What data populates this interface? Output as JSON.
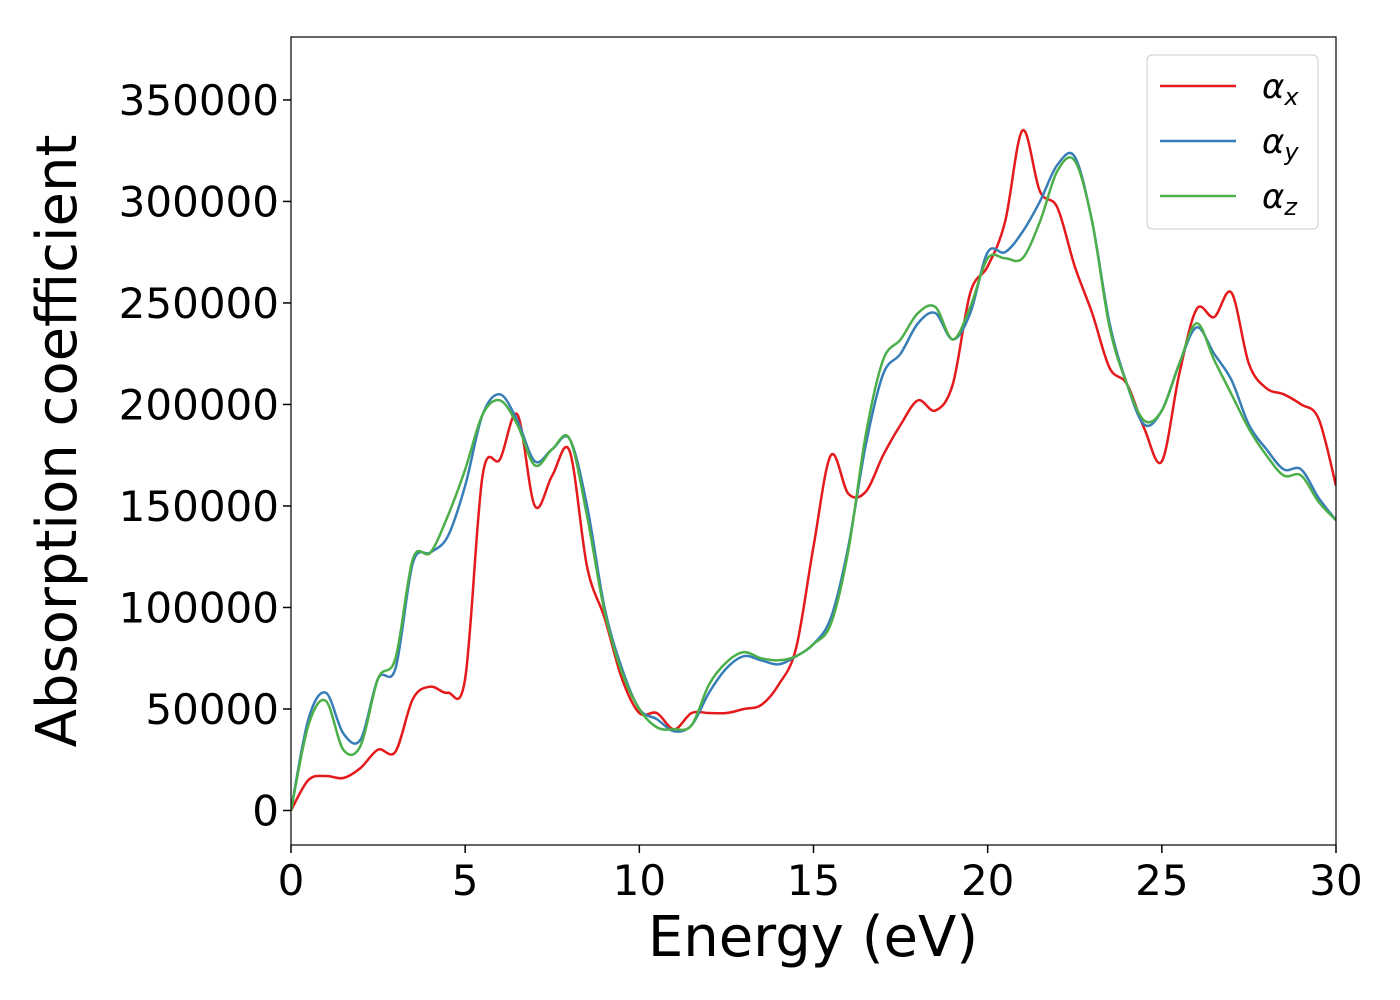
{
  "chart_data": {
    "type": "line",
    "xlabel": "Energy (eV)",
    "ylabel": "Absorption coefficient",
    "x": [
      0,
      0.5,
      1,
      1.5,
      2,
      2.5,
      3,
      3.5,
      4,
      4.5,
      5,
      5.5,
      6,
      6.5,
      7,
      7.5,
      8,
      8.5,
      9,
      9.5,
      10,
      10.5,
      11,
      11.5,
      12,
      12.5,
      13,
      13.5,
      14,
      14.5,
      15,
      15.5,
      16,
      16.5,
      17,
      17.5,
      18,
      18.5,
      19,
      19.5,
      20,
      20.5,
      21,
      21.5,
      22,
      22.5,
      23,
      23.5,
      24,
      24.5,
      25,
      25.5,
      26,
      26.5,
      27,
      27.5,
      28,
      28.5,
      29,
      29.5,
      30
    ],
    "series": [
      {
        "name": "α_x",
        "color": "#e41a1c",
        "values": [
          0,
          15000,
          17000,
          16000,
          21000,
          30000,
          29000,
          55000,
          61000,
          58000,
          65000,
          165000,
          173000,
          195000,
          150000,
          165000,
          177000,
          120000,
          95000,
          65000,
          48000,
          48000,
          40000,
          48000,
          48000,
          48000,
          50000,
          52000,
          62000,
          80000,
          130000,
          175000,
          156000,
          157000,
          175000,
          190000,
          202000,
          197000,
          210000,
          255000,
          268000,
          290000,
          335000,
          305000,
          297000,
          268000,
          245000,
          218000,
          210000,
          188000,
          172000,
          215000,
          247000,
          243000,
          255000,
          220000,
          208000,
          205000,
          200000,
          193000,
          160000
        ]
      },
      {
        "name": "α_y",
        "color": "#377eb8",
        "values": [
          0,
          45000,
          58000,
          38000,
          35000,
          65000,
          70000,
          122000,
          127000,
          135000,
          160000,
          195000,
          205000,
          192000,
          172000,
          178000,
          183000,
          150000,
          100000,
          70000,
          50000,
          45000,
          39000,
          42000,
          58000,
          70000,
          76000,
          74000,
          72000,
          76000,
          82000,
          95000,
          130000,
          180000,
          215000,
          225000,
          240000,
          245000,
          232000,
          245000,
          275000,
          275000,
          285000,
          300000,
          318000,
          322000,
          290000,
          240000,
          210000,
          190000,
          197000,
          220000,
          238000,
          225000,
          212000,
          190000,
          178000,
          168000,
          168000,
          154000,
          143000
        ]
      },
      {
        "name": "α_z",
        "color": "#4daf4a",
        "values": [
          0,
          42000,
          54000,
          30000,
          32000,
          65000,
          75000,
          124000,
          127000,
          145000,
          168000,
          195000,
          202000,
          190000,
          170000,
          178000,
          183000,
          145000,
          98000,
          68000,
          50000,
          41000,
          40000,
          42000,
          62000,
          73000,
          78000,
          75000,
          74000,
          76000,
          82000,
          92000,
          128000,
          185000,
          222000,
          232000,
          245000,
          248000,
          232000,
          248000,
          272000,
          272000,
          272000,
          290000,
          315000,
          320000,
          290000,
          238000,
          210000,
          192000,
          197000,
          220000,
          240000,
          222000,
          205000,
          188000,
          175000,
          165000,
          165000,
          152000,
          143000
        ]
      }
    ],
    "xlim": [
      0,
      30
    ],
    "xticks": [
      0,
      5,
      10,
      15,
      20,
      25,
      30
    ],
    "ylim": [
      -17000,
      381000
    ],
    "yticks": [
      0,
      50000,
      100000,
      150000,
      200000,
      250000,
      300000,
      350000
    ],
    "grid": false,
    "legend": "upper right"
  }
}
